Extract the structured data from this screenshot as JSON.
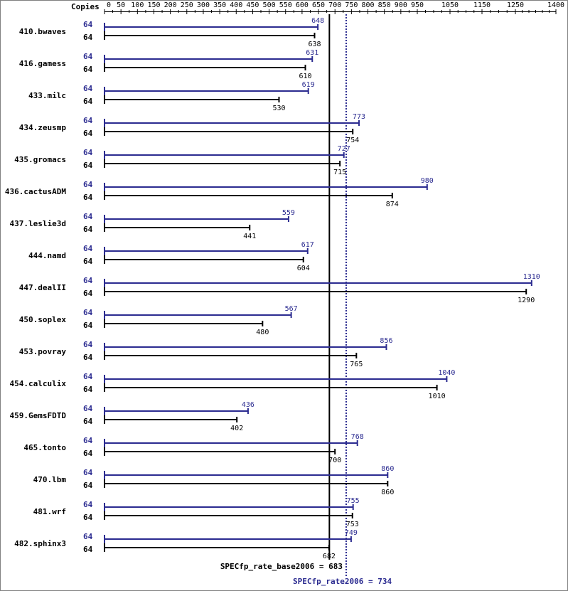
{
  "chart_data": {
    "type": "bar",
    "copies_header": "Copies",
    "x_ticks": [
      0,
      50,
      100,
      150,
      200,
      250,
      300,
      350,
      400,
      450,
      500,
      550,
      600,
      650,
      700,
      750,
      800,
      850,
      900,
      950,
      1050,
      1150,
      1250,
      1400
    ],
    "xlim": [
      0,
      1400
    ],
    "benchmarks": [
      {
        "name": "410.bwaves",
        "peak_copies": "64",
        "base_copies": "64",
        "peak": 648,
        "base": 638
      },
      {
        "name": "416.gamess",
        "peak_copies": "64",
        "base_copies": "64",
        "peak": 631,
        "base": 610
      },
      {
        "name": "433.milc",
        "peak_copies": "64",
        "base_copies": "64",
        "peak": 619,
        "base": 530
      },
      {
        "name": "434.zeusmp",
        "peak_copies": "64",
        "base_copies": "64",
        "peak": 773,
        "base": 754
      },
      {
        "name": "435.gromacs",
        "peak_copies": "64",
        "base_copies": "64",
        "peak": 727,
        "base": 715
      },
      {
        "name": "436.cactusADM",
        "peak_copies": "64",
        "base_copies": "64",
        "peak": 980,
        "base": 874
      },
      {
        "name": "437.leslie3d",
        "peak_copies": "64",
        "base_copies": "64",
        "peak": 559,
        "base": 441
      },
      {
        "name": "444.namd",
        "peak_copies": "64",
        "base_copies": "64",
        "peak": 617,
        "base": 604
      },
      {
        "name": "447.dealII",
        "peak_copies": "64",
        "base_copies": "64",
        "peak": 1310,
        "base": 1290
      },
      {
        "name": "450.soplex",
        "peak_copies": "64",
        "base_copies": "64",
        "peak": 567,
        "base": 480
      },
      {
        "name": "453.povray",
        "peak_copies": "64",
        "base_copies": "64",
        "peak": 856,
        "base": 765
      },
      {
        "name": "454.calculix",
        "peak_copies": "64",
        "base_copies": "64",
        "peak": 1040,
        "base": 1010
      },
      {
        "name": "459.GemsFDTD",
        "peak_copies": "64",
        "base_copies": "64",
        "peak": 436,
        "base": 402
      },
      {
        "name": "465.tonto",
        "peak_copies": "64",
        "base_copies": "64",
        "peak": 768,
        "base": 700
      },
      {
        "name": "470.lbm",
        "peak_copies": "64",
        "base_copies": "64",
        "peak": 860,
        "base": 860
      },
      {
        "name": "481.wrf",
        "peak_copies": "64",
        "base_copies": "64",
        "peak": 755,
        "base": 753
      },
      {
        "name": "482.sphinx3",
        "peak_copies": "64",
        "base_copies": "64",
        "peak": 749,
        "base": 682
      }
    ],
    "base_reference": {
      "label": "SPECfp_rate_base2006 = 683",
      "value": 683
    },
    "peak_reference": {
      "label": "SPECfp_rate2006 = 734",
      "value": 734
    },
    "colors": {
      "peak": "#2b2b90",
      "base": "#000000",
      "frame": "#808080"
    }
  }
}
